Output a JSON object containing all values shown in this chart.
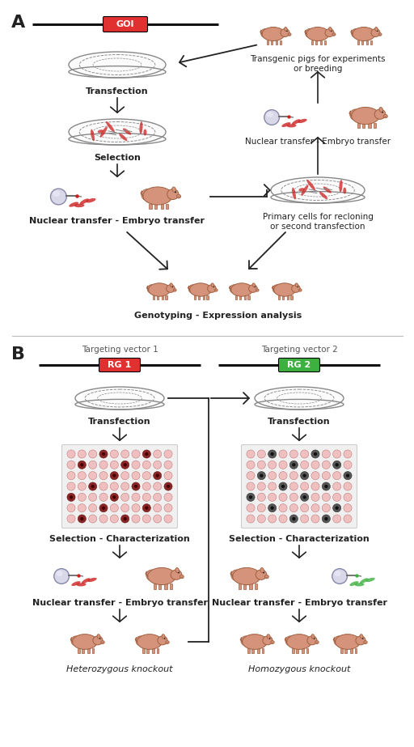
{
  "title_A": "A",
  "title_B": "B",
  "bg_color": "#ffffff",
  "text_color": "#2a2a2a",
  "label_GOI": "GOI",
  "label_RG1": "RG 1",
  "label_RG2": "RG 2",
  "label_tv1": "Targeting vector 1",
  "label_tv2": "Targeting vector 2",
  "red_box": "#e03030",
  "green_box": "#3db040",
  "pig_color": "#d4937a",
  "pig_edge": "#a06040",
  "steps_A_left": [
    "Transfection",
    "Selection",
    "Nuclear transfer - Embryo transfer",
    "Genotyping - Expression analysis"
  ],
  "steps_A_right": [
    "Transgenic pigs for experiments\nor breeding",
    "Nuclear transfer - Embryo transfer",
    "Primary cells for recloning\nor second transfection"
  ],
  "steps_B_left": [
    "Transfection",
    "Selection - Characterization",
    "Nuclear transfer - Embryo transfer",
    "Heterozygous knockout"
  ],
  "steps_B_right": [
    "Transfection",
    "Selection - Characterization",
    "Nuclear transfer - Embryo transfer",
    "Homozygous knockout"
  ],
  "well_pink": "#f0c0c0",
  "well_pink_border": "#c08080",
  "well_selected_left": "#7a2020",
  "well_gray": "#e8e8e8",
  "well_gray_border": "#b0b0b0",
  "well_selected_right": "#404040",
  "dish_gray": "#909090",
  "dish_fill": "#f5f5f5",
  "cell_red": "#cc2020",
  "cell_gray": "#808080"
}
